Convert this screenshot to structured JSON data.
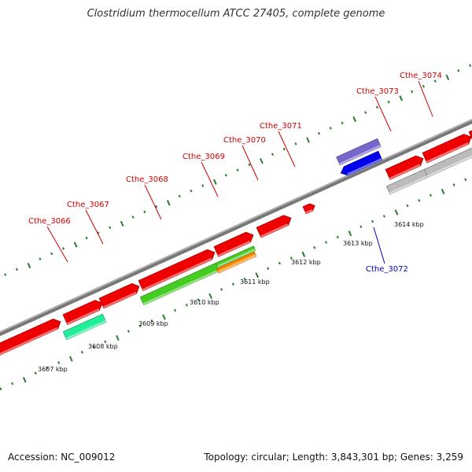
{
  "title": "Clostridium thermocellum ATCC 27405, complete genome",
  "footer": {
    "accession": "Accession: NC_009012",
    "topology": "Topology: circular; Length: 3,843,301 bp; Genes: 3,259"
  },
  "colors": {
    "forward_cds": "#ee0000",
    "reverse_cds_highlight": "#0000ee",
    "backbone": "#888888",
    "tick": "#2a7a2a",
    "locus_label": "#cc0000",
    "locus_label_reverse": "#0000aa",
    "feature_teal": "#22ee99",
    "feature_green": "#44cc22",
    "feature_orange": "#ff8800",
    "feature_gray": "#bbbbbb",
    "feature_lavender": "#7766cc"
  },
  "scale_labels": [
    "3607 kbp",
    "3608 kbp",
    "3609 kbp",
    "3610 kbp",
    "3611 kbp",
    "3612 kbp",
    "3613 kbp",
    "3614 kbp"
  ],
  "locus_labels": [
    {
      "text": "Cthe_3066",
      "strand": "forward"
    },
    {
      "text": "Cthe_3067",
      "strand": "forward"
    },
    {
      "text": "Cthe_3068",
      "strand": "forward"
    },
    {
      "text": "Cthe_3069",
      "strand": "forward"
    },
    {
      "text": "Cthe_3070",
      "strand": "forward"
    },
    {
      "text": "Cthe_3071",
      "strand": "forward"
    },
    {
      "text": "Cthe_3072",
      "strand": "reverse"
    },
    {
      "text": "Cthe_3073",
      "strand": "forward"
    },
    {
      "text": "Cthe_3074",
      "strand": "forward"
    }
  ]
}
